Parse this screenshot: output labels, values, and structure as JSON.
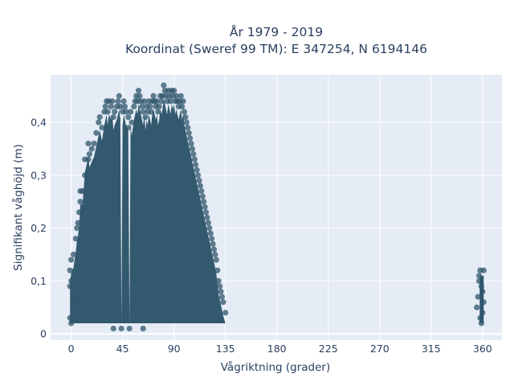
{
  "chart_data": {
    "type": "scatter",
    "title_lines": [
      "År 1979 - 2019",
      "Koordinat (Sweref 99 TM): E 347254, N 6194146"
    ],
    "xlabel": "Vågriktning (grader)",
    "ylabel": "Signifikant våghöjd (m)",
    "xlim": [
      -18,
      377
    ],
    "ylim": [
      -0.012,
      0.49
    ],
    "x_ticks": [
      0,
      45,
      90,
      135,
      180,
      225,
      270,
      315,
      360
    ],
    "x_tick_labels": [
      "0",
      "45",
      "90",
      "135",
      "180",
      "225",
      "270",
      "315",
      "360"
    ],
    "y_ticks": [
      0,
      0.1,
      0.2,
      0.3,
      0.4
    ],
    "y_tick_labels": [
      "0",
      "0,1",
      "0,2",
      "0,3",
      "0,4"
    ],
    "grid": true,
    "legend": "none",
    "marker_color": "#2f566b",
    "plot_background": "#e5ecf6",
    "series": [
      {
        "x": [
          -1,
          -1,
          -1,
          0,
          0,
          0,
          2,
          2,
          4,
          5,
          6,
          7,
          8,
          8,
          10,
          12,
          12,
          15,
          15,
          16,
          18,
          20,
          22,
          24,
          25,
          27,
          29,
          30,
          31,
          32,
          33,
          35,
          36,
          37,
          38,
          40,
          41,
          42,
          43,
          45,
          46,
          47,
          48,
          50,
          50,
          52,
          53,
          55,
          56,
          57,
          58,
          59,
          60,
          61,
          62,
          63,
          64,
          65,
          66,
          67,
          68,
          69,
          70,
          71,
          72,
          73,
          74,
          75,
          76,
          77,
          78,
          79,
          80,
          81,
          82,
          83,
          84,
          85,
          86,
          87,
          88,
          89,
          90,
          91,
          92,
          93,
          94,
          95,
          96,
          97,
          98,
          99,
          100,
          101,
          102,
          103,
          104,
          105,
          106,
          107,
          108,
          109,
          110,
          111,
          112,
          113,
          114,
          115,
          116,
          117,
          118,
          119,
          120,
          121,
          122,
          123,
          124,
          125,
          126,
          127,
          128,
          129,
          130,
          131,
          132,
          133,
          135,
          37,
          44,
          63,
          51,
          355,
          356,
          357,
          358,
          358,
          359,
          360,
          360,
          361,
          361,
          359,
          357
        ],
        "y": [
          0.03,
          0.09,
          0.12,
          0.02,
          0.1,
          0.14,
          0.06,
          0.15,
          0.18,
          0.2,
          0.21,
          0.23,
          0.25,
          0.27,
          0.27,
          0.3,
          0.33,
          0.36,
          0.33,
          0.34,
          0.35,
          0.36,
          0.38,
          0.4,
          0.41,
          0.39,
          0.42,
          0.43,
          0.44,
          0.42,
          0.44,
          0.43,
          0.44,
          0.41,
          0.42,
          0.43,
          0.44,
          0.45,
          0.43,
          0.42,
          0.44,
          0.43,
          0.42,
          0.41,
          0.39,
          0.42,
          0.4,
          0.43,
          0.44,
          0.45,
          0.44,
          0.46,
          0.45,
          0.44,
          0.43,
          0.42,
          0.44,
          0.41,
          0.43,
          0.42,
          0.44,
          0.43,
          0.42,
          0.44,
          0.45,
          0.44,
          0.43,
          0.44,
          0.42,
          0.43,
          0.45,
          0.44,
          0.45,
          0.47,
          0.46,
          0.45,
          0.44,
          0.46,
          0.45,
          0.44,
          0.46,
          0.45,
          0.46,
          0.44,
          0.45,
          0.44,
          0.43,
          0.44,
          0.45,
          0.43,
          0.44,
          0.42,
          0.41,
          0.4,
          0.39,
          0.38,
          0.37,
          0.36,
          0.35,
          0.34,
          0.33,
          0.32,
          0.31,
          0.3,
          0.29,
          0.28,
          0.27,
          0.26,
          0.25,
          0.24,
          0.23,
          0.22,
          0.21,
          0.2,
          0.19,
          0.18,
          0.17,
          0.16,
          0.15,
          0.14,
          0.12,
          0.1,
          0.09,
          0.08,
          0.07,
          0.06,
          0.04,
          0.01,
          0.01,
          0.01,
          0.01,
          0.05,
          0.07,
          0.1,
          0.12,
          0.03,
          0.02,
          0.04,
          0.08,
          0.12,
          0.06,
          0.09,
          0.11
        ]
      }
    ]
  }
}
